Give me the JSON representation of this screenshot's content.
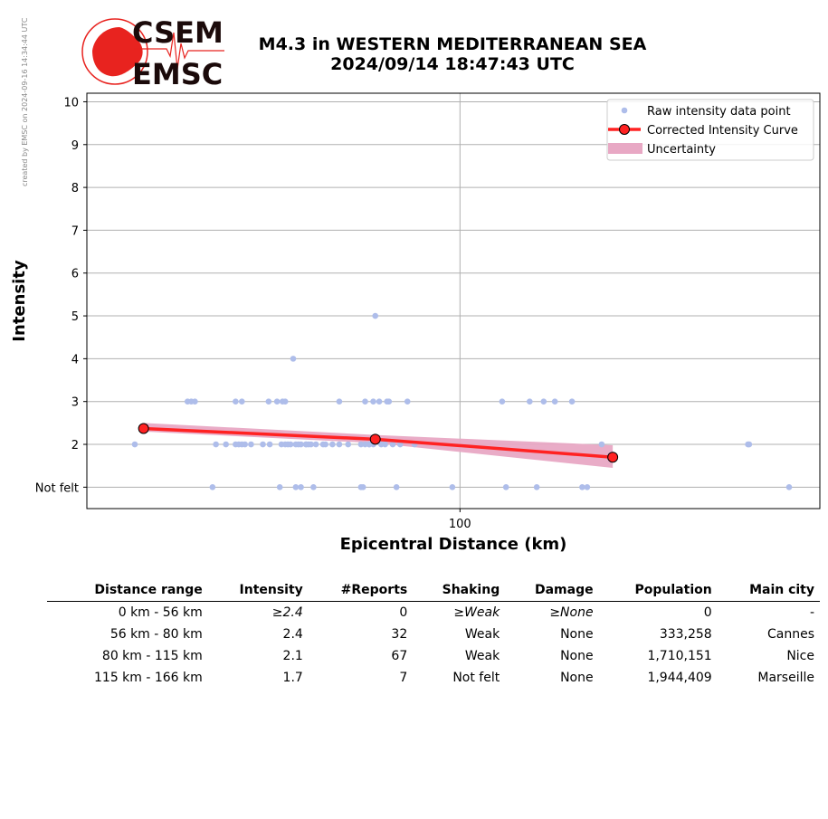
{
  "credit": "created by EMSC on 2024-09-16 14:34:44 UTC",
  "logo": {
    "line1": "CSEM",
    "line2": "EMSC",
    "color": "#e8231f",
    "text_color": "#1b0a0a"
  },
  "title": {
    "line1": "M4.3 in WESTERN MEDITERRANEAN SEA",
    "line2": "2024/09/14 18:47:43 UTC"
  },
  "chart_data": {
    "type": "scatter",
    "xlabel": "Epicentral Distance (km)",
    "ylabel": "Intensity",
    "xscale": "log",
    "xlim": [
      29,
      330
    ],
    "ylim": [
      0.5,
      10.2
    ],
    "x_ticks": [
      {
        "value": 100,
        "label": "100"
      }
    ],
    "y_ticks": [
      {
        "value": 1,
        "label": "Not felt"
      },
      {
        "value": 2,
        "label": "2"
      },
      {
        "value": 3,
        "label": "3"
      },
      {
        "value": 4,
        "label": "4"
      },
      {
        "value": 5,
        "label": "5"
      },
      {
        "value": 6,
        "label": "6"
      },
      {
        "value": 7,
        "label": "7"
      },
      {
        "value": 8,
        "label": "8"
      },
      {
        "value": 9,
        "label": "9"
      },
      {
        "value": 10,
        "label": "10"
      }
    ],
    "grid": true,
    "legend_position": "top-right",
    "legend": [
      "Raw intensity data point",
      "Corrected Intensity Curve",
      "Uncertainty"
    ],
    "colors": {
      "raw": "#aebdea",
      "curve": "#ff2222",
      "uncertainty": "#e8a8c4",
      "marker_edge": "#000000",
      "grid": "#b0b0b0"
    },
    "raw_points": [
      [
        34,
        2
      ],
      [
        40.5,
        3
      ],
      [
        41,
        3
      ],
      [
        41.5,
        3
      ],
      [
        44,
        1
      ],
      [
        44.5,
        2
      ],
      [
        46,
        2
      ],
      [
        47.5,
        3
      ],
      [
        47.5,
        2
      ],
      [
        48,
        2
      ],
      [
        48.5,
        3
      ],
      [
        48.5,
        2
      ],
      [
        49,
        2
      ],
      [
        50,
        2
      ],
      [
        52,
        2
      ],
      [
        53,
        3
      ],
      [
        53.2,
        2
      ],
      [
        54.5,
        3
      ],
      [
        55,
        1
      ],
      [
        55.5,
        3
      ],
      [
        55.3,
        2
      ],
      [
        56,
        3
      ],
      [
        56,
        2
      ],
      [
        56.5,
        2
      ],
      [
        57,
        2
      ],
      [
        57.5,
        4
      ],
      [
        58,
        1
      ],
      [
        58,
        2
      ],
      [
        58.5,
        2
      ],
      [
        59,
        1
      ],
      [
        59,
        2
      ],
      [
        60,
        2
      ],
      [
        60,
        2
      ],
      [
        60.5,
        2
      ],
      [
        61,
        2
      ],
      [
        61.5,
        1
      ],
      [
        62,
        2
      ],
      [
        63.5,
        2
      ],
      [
        64,
        2
      ],
      [
        65.5,
        2
      ],
      [
        67,
        3
      ],
      [
        67,
        2
      ],
      [
        69,
        2
      ],
      [
        72,
        2
      ],
      [
        72,
        1
      ],
      [
        72.5,
        1
      ],
      [
        73,
        2
      ],
      [
        73,
        3
      ],
      [
        74,
        2
      ],
      [
        74,
        2
      ],
      [
        75,
        2
      ],
      [
        75,
        3
      ],
      [
        75.5,
        5
      ],
      [
        76.5,
        3
      ],
      [
        77,
        2
      ],
      [
        78,
        2
      ],
      [
        78.5,
        3
      ],
      [
        79,
        3
      ],
      [
        80,
        2
      ],
      [
        81,
        1
      ],
      [
        82,
        2
      ],
      [
        84,
        3
      ],
      [
        86,
        2
      ],
      [
        97.5,
        1
      ],
      [
        115,
        3
      ],
      [
        116.5,
        1
      ],
      [
        126,
        3
      ],
      [
        129,
        1
      ],
      [
        132,
        3
      ],
      [
        137,
        3
      ],
      [
        145,
        3
      ],
      [
        150,
        1
      ],
      [
        152.5,
        1
      ],
      [
        160,
        2
      ],
      [
        260,
        2
      ],
      [
        261,
        2
      ],
      [
        298,
        1
      ]
    ],
    "curve": [
      [
        35,
        2.37
      ],
      [
        75.5,
        2.12
      ],
      [
        166,
        1.7
      ]
    ],
    "uncertainty_upper": [
      [
        35,
        2.5
      ],
      [
        75.5,
        2.22
      ],
      [
        166,
        1.98
      ]
    ],
    "uncertainty_lower": [
      [
        35,
        2.3
      ],
      [
        75.5,
        2.03
      ],
      [
        166,
        1.45
      ]
    ]
  },
  "table": {
    "headers": [
      "Distance range",
      "Intensity",
      "#Reports",
      "Shaking",
      "Damage",
      "Population",
      "Main city"
    ],
    "rows": [
      [
        "0 km -   56 km",
        "≥2.4",
        "0",
        "≥Weak",
        "≥None",
        "0",
        "-"
      ],
      [
        "56 km -   80 km",
        "2.4",
        "32",
        "Weak",
        "None",
        "333,258",
        "Cannes"
      ],
      [
        "80 km -  115 km",
        "2.1",
        "67",
        "Weak",
        "None",
        "1,710,151",
        "Nice"
      ],
      [
        "115 km -  166 km",
        "1.7",
        "7",
        "Not felt",
        "None",
        "1,944,409",
        "Marseille"
      ]
    ]
  }
}
